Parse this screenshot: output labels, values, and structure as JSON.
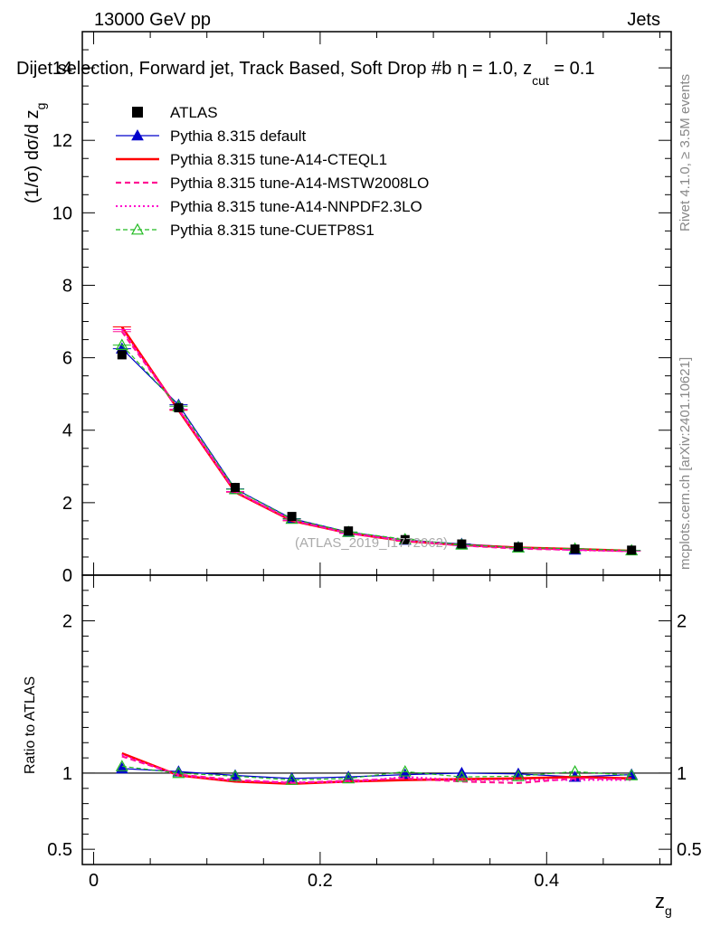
{
  "header": {
    "left": "13000 GeV pp",
    "right": "Jets"
  },
  "chart_data": {
    "type": "line",
    "title": "Dijet selection, Forward jet, Track Based, Soft Drop #b",
    "title_params": {
      "eta_part": "η = 1.0, z",
      "cut_sub": "cut",
      "end_part": " = 0.1"
    },
    "analysis_label": "(ATLAS_2019_I1772062)",
    "side_label_right": "Rivet 4.1.0, ≥ 3.5M events",
    "side_label_right2": "mcplots.cern.ch [arXiv:2401.10621]",
    "ylabel_main": {
      "base": "(1/σ) dσ/d z",
      "sub": "g"
    },
    "ylabel_ratio": "Ratio to ATLAS",
    "xlabel": {
      "base": "z",
      "sub": "g"
    },
    "xlim": [
      -0.01,
      0.51
    ],
    "ylim_main": [
      0,
      15
    ],
    "ylim_ratio": [
      0.4,
      2.3
    ],
    "x_ticks": [
      "0",
      "0.2",
      "0.4"
    ],
    "y_ticks_main": [
      "0",
      "2",
      "4",
      "6",
      "8",
      "10",
      "12",
      "14"
    ],
    "y_ticks_ratio": [
      "0.5",
      "1",
      "2"
    ],
    "x": [
      0.025,
      0.075,
      0.125,
      0.175,
      0.225,
      0.275,
      0.325,
      0.375,
      0.425,
      0.475
    ],
    "data": {
      "name": "ATLAS",
      "values": [
        6.08,
        4.62,
        2.42,
        1.62,
        1.22,
        0.98,
        0.86,
        0.78,
        0.72,
        0.69
      ],
      "errors": [
        0.05,
        0.05,
        0.03,
        0.03,
        0.03,
        0.03,
        0.02,
        0.02,
        0.02,
        0.02
      ]
    },
    "series": [
      {
        "name": "Pythia 8.315 default",
        "color": "#0000cc",
        "style": "solid-triangle",
        "values": [
          6.25,
          4.7,
          2.38,
          1.56,
          1.19,
          0.97,
          0.86,
          0.77,
          0.7,
          0.68
        ],
        "ratio": [
          1.03,
          1.01,
          0.985,
          0.965,
          0.975,
          0.99,
          1.0,
          0.995,
          0.975,
          0.99
        ]
      },
      {
        "name": "Pythia 8.315 tune-A14-CTEQL1",
        "color": "#ff0000",
        "style": "solid-thick",
        "values": [
          6.85,
          4.55,
          2.29,
          1.5,
          1.16,
          0.94,
          0.83,
          0.76,
          0.72,
          0.67
        ],
        "ratio": [
          1.13,
          0.985,
          0.945,
          0.93,
          0.945,
          0.955,
          0.96,
          0.965,
          0.975,
          0.965
        ]
      },
      {
        "name": "Pythia 8.315 tune-A14-MSTW2008LO",
        "color": "#ff1493",
        "style": "dashed",
        "values": [
          6.72,
          4.58,
          2.31,
          1.51,
          1.16,
          0.95,
          0.82,
          0.73,
          0.7,
          0.66
        ],
        "ratio": [
          1.11,
          0.99,
          0.955,
          0.935,
          0.95,
          0.965,
          0.945,
          0.935,
          0.965,
          0.96
        ]
      },
      {
        "name": "Pythia 8.315 tune-A14-NNPDF2.3LO",
        "color": "#ff00cc",
        "style": "dotted",
        "values": [
          6.78,
          4.57,
          2.3,
          1.52,
          1.15,
          0.96,
          0.82,
          0.75,
          0.69,
          0.66
        ],
        "ratio": [
          1.12,
          0.985,
          0.95,
          0.94,
          0.94,
          0.975,
          0.955,
          0.955,
          0.955,
          0.955
        ]
      },
      {
        "name": "Pythia 8.315 tune-CUETP8S1",
        "color": "#22bb22",
        "style": "dashed-open-triangle",
        "values": [
          6.35,
          4.66,
          2.37,
          1.55,
          1.19,
          0.99,
          0.84,
          0.76,
          0.73,
          0.68
        ],
        "ratio": [
          1.045,
          1.0,
          0.98,
          0.955,
          0.965,
          1.01,
          0.975,
          0.98,
          1.01,
          0.985
        ]
      }
    ]
  }
}
